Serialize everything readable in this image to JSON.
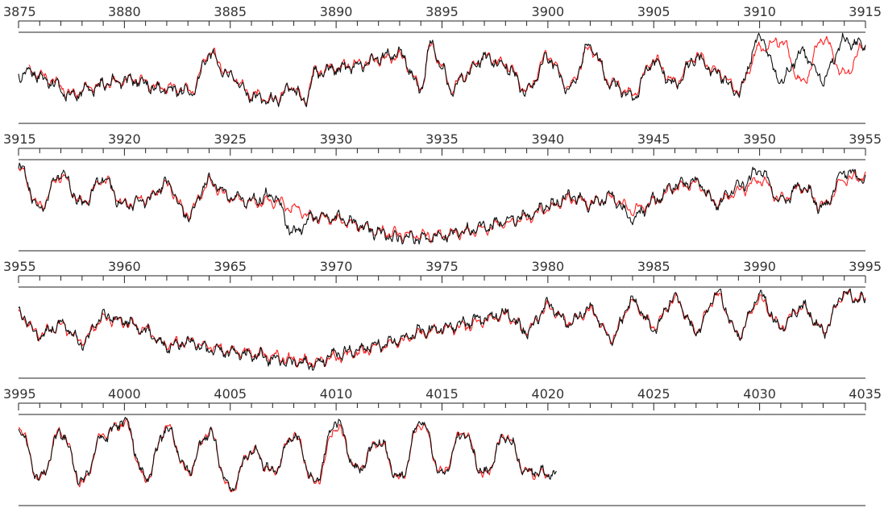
{
  "chart_data": {
    "type": "line",
    "colors": {
      "model": "#ff2020",
      "observed": "#111111",
      "axis": "#222222"
    },
    "panels": [
      {
        "xlim": [
          3875,
          3915
        ],
        "tick_labels": [
          "3875",
          "3880",
          "3885",
          "3890",
          "3895",
          "3900",
          "3905",
          "3910",
          "3915"
        ],
        "series": [
          {
            "role": "model",
            "color": "#ff2020",
            "x": [
              3875.5,
              3876.5,
              3877.5,
              3878.5,
              3879.5,
              3880.5,
              3881.5,
              3882.5,
              3883.2,
              3884,
              3885,
              3886,
              3887,
              3888,
              3888.5,
              3889,
              3890,
              3891,
              3892,
              3893,
              3894,
              3894.5,
              3895,
              3895.5,
              3896,
              3897,
              3898,
              3899,
              3900,
              3901,
              3902,
              3903,
              3904,
              3905,
              3906,
              3907,
              3908,
              3909,
              3910,
              3911,
              3912,
              3913,
              3914,
              3915
            ],
            "y": [
              0.55,
              0.45,
              0.25,
              0.35,
              0.4,
              0.45,
              0.35,
              0.32,
              0.3,
              0.8,
              0.5,
              0.25,
              0.18,
              0.35,
              0.15,
              0.55,
              0.6,
              0.65,
              0.7,
              0.75,
              0.35,
              0.9,
              0.6,
              0.3,
              0.5,
              0.75,
              0.65,
              0.3,
              0.75,
              0.35,
              0.85,
              0.4,
              0.25,
              0.7,
              0.4,
              0.75,
              0.55,
              0.3,
              0.85,
              0.95,
              0.4,
              0.98,
              0.5,
              0.9
            ]
          },
          {
            "role": "observed",
            "color": "#111111",
            "x": [
              3875,
              3875.5,
              3876.5,
              3877.5,
              3878.5,
              3879.5,
              3880.5,
              3881.5,
              3882.5,
              3883.2,
              3884,
              3885,
              3886,
              3887,
              3888,
              3888.5,
              3889,
              3890,
              3891,
              3892,
              3893,
              3894,
              3894.5,
              3895,
              3895.5,
              3896,
              3897,
              3898,
              3899,
              3900,
              3901,
              3902,
              3903,
              3904,
              3905,
              3906,
              3907,
              3908,
              3909,
              3910,
              3911,
              3912,
              3913,
              3914,
              3915
            ],
            "y": [
              0.5,
              0.55,
              0.42,
              0.22,
              0.33,
              0.42,
              0.43,
              0.33,
              0.3,
              0.28,
              0.78,
              0.48,
              0.22,
              0.16,
              0.33,
              0.13,
              0.52,
              0.58,
              0.62,
              0.72,
              0.78,
              0.32,
              0.92,
              0.58,
              0.28,
              0.48,
              0.73,
              0.62,
              0.28,
              0.72,
              0.32,
              0.88,
              0.38,
              0.22,
              0.68,
              0.38,
              0.72,
              0.52,
              0.28,
              1.0,
              0.42,
              0.8,
              0.45,
              0.95,
              0.88
            ]
          }
        ]
      },
      {
        "xlim": [
          3915,
          3955
        ],
        "tick_labels": [
          "3915",
          "3920",
          "3925",
          "3930",
          "3935",
          "3940",
          "3945",
          "3950",
          "3955"
        ],
        "series": [
          {
            "role": "model",
            "color": "#ff2020",
            "x": [
              3915,
              3916,
              3917,
              3918,
              3919,
              3920,
              3921,
              3922,
              3923,
              3924,
              3925,
              3926,
              3927,
              3928,
              3929,
              3930,
              3931,
              3932,
              3933,
              3934,
              3935,
              3936,
              3937,
              3938,
              3939,
              3940,
              3941,
              3942,
              3943,
              3944,
              3945,
              3946,
              3947,
              3948,
              3949,
              3950,
              3951,
              3952,
              3953,
              3954,
              3955
            ],
            "y": [
              0.95,
              0.45,
              0.85,
              0.5,
              0.8,
              0.48,
              0.55,
              0.72,
              0.35,
              0.75,
              0.55,
              0.5,
              0.52,
              0.42,
              0.3,
              0.28,
              0.2,
              0.12,
              0.08,
              0.06,
              0.07,
              0.1,
              0.15,
              0.22,
              0.3,
              0.42,
              0.55,
              0.5,
              0.55,
              0.4,
              0.5,
              0.7,
              0.75,
              0.5,
              0.65,
              0.8,
              0.55,
              0.7,
              0.45,
              0.8,
              0.85
            ]
          },
          {
            "role": "observed",
            "color": "#111111",
            "x": [
              3915,
              3916,
              3917,
              3918,
              3919,
              3920,
              3921,
              3922,
              3923,
              3924,
              3925,
              3926,
              3927,
              3928,
              3929,
              3930,
              3931,
              3932,
              3933,
              3934,
              3935,
              3936,
              3937,
              3938,
              3939,
              3940,
              3941,
              3942,
              3943,
              3944,
              3945,
              3946,
              3947,
              3948,
              3949,
              3950,
              3951,
              3952,
              3953,
              3954,
              3955
            ],
            "y": [
              0.98,
              0.42,
              0.88,
              0.48,
              0.82,
              0.45,
              0.53,
              0.75,
              0.32,
              0.78,
              0.58,
              0.52,
              0.6,
              0.1,
              0.32,
              0.3,
              0.22,
              0.1,
              0.02,
              0.03,
              0.05,
              0.12,
              0.17,
              0.25,
              0.32,
              0.45,
              0.58,
              0.48,
              0.58,
              0.28,
              0.52,
              0.72,
              0.78,
              0.48,
              0.7,
              0.92,
              0.52,
              0.72,
              0.42,
              0.9,
              0.82
            ]
          }
        ]
      },
      {
        "xlim": [
          3955,
          3995
        ],
        "tick_labels": [
          "3955",
          "3960",
          "3965",
          "3970",
          "3975",
          "3980",
          "3985",
          "3990",
          "3995"
        ],
        "series": [
          {
            "role": "model",
            "color": "#ff2020",
            "x": [
              3955,
              3956,
              3957,
              3958,
              3959,
              3960,
              3961,
              3962,
              3963,
              3964,
              3965,
              3966,
              3967,
              3968,
              3969,
              3970,
              3971,
              3972,
              3973,
              3974,
              3975,
              3976,
              3977,
              3978,
              3979,
              3980,
              3981,
              3982,
              3983,
              3984,
              3985,
              3986,
              3987,
              3988,
              3989,
              3990,
              3991,
              3992,
              3993,
              3994,
              3995
            ],
            "y": [
              0.7,
              0.45,
              0.55,
              0.35,
              0.65,
              0.6,
              0.5,
              0.3,
              0.35,
              0.28,
              0.22,
              0.2,
              0.15,
              0.1,
              0.08,
              0.14,
              0.2,
              0.28,
              0.35,
              0.45,
              0.5,
              0.55,
              0.62,
              0.7,
              0.5,
              0.8,
              0.6,
              0.75,
              0.4,
              0.85,
              0.55,
              0.9,
              0.5,
              0.95,
              0.45,
              0.9,
              0.55,
              0.8,
              0.5,
              0.95,
              0.9
            ]
          },
          {
            "role": "observed",
            "color": "#111111",
            "x": [
              3955,
              3956,
              3957,
              3958,
              3959,
              3960,
              3961,
              3962,
              3963,
              3964,
              3965,
              3966,
              3967,
              3968,
              3969,
              3970,
              3971,
              3972,
              3973,
              3974,
              3975,
              3976,
              3977,
              3978,
              3979,
              3980,
              3981,
              3982,
              3983,
              3984,
              3985,
              3986,
              3987,
              3988,
              3989,
              3990,
              3991,
              3992,
              3993,
              3994,
              3995
            ],
            "y": [
              0.72,
              0.42,
              0.57,
              0.32,
              0.68,
              0.62,
              0.48,
              0.27,
              0.33,
              0.25,
              0.2,
              0.18,
              0.12,
              0.07,
              0.05,
              0.18,
              0.22,
              0.3,
              0.37,
              0.48,
              0.52,
              0.58,
              0.65,
              0.72,
              0.48,
              0.82,
              0.58,
              0.78,
              0.38,
              0.88,
              0.52,
              0.93,
              0.48,
              0.98,
              0.42,
              0.95,
              0.52,
              0.82,
              0.48,
              0.98,
              0.88
            ]
          }
        ]
      },
      {
        "xlim": [
          3995,
          4035
        ],
        "tick_labels": [
          "3995",
          "4000",
          "4005",
          "4010",
          "4015",
          "4020",
          "4025",
          "4030",
          "4035"
        ],
        "series": [
          {
            "role": "model",
            "color": "#ff2020",
            "x": [
              3995,
              3996,
              3997,
              3998,
              3999,
              4000,
              4001,
              4002,
              4003,
              4004,
              4005,
              4006,
              4007,
              4008,
              4009,
              4010,
              4011,
              4012,
              4013,
              4014,
              4015,
              4016,
              4017,
              4018,
              4019,
              4020
            ],
            "y": [
              0.9,
              0.2,
              0.85,
              0.15,
              0.8,
              0.95,
              0.2,
              0.9,
              0.3,
              0.85,
              0.05,
              0.6,
              0.3,
              0.8,
              0.15,
              0.9,
              0.35,
              0.7,
              0.2,
              0.95,
              0.3,
              0.85,
              0.25,
              0.8,
              0.3,
              0.25
            ]
          },
          {
            "role": "observed",
            "color": "#111111",
            "x": [
              3995,
              3996,
              3997,
              3998,
              3999,
              4000,
              4001,
              4002,
              4003,
              4004,
              4005,
              4006,
              4007,
              4008,
              4009,
              4010,
              4011,
              4012,
              4013,
              4014,
              4015,
              4016,
              4017,
              4018,
              4019,
              4020.4
            ],
            "y": [
              0.88,
              0.22,
              0.82,
              0.18,
              0.78,
              0.98,
              0.22,
              0.88,
              0.32,
              0.82,
              0.08,
              0.58,
              0.32,
              0.78,
              0.18,
              0.98,
              0.32,
              0.72,
              0.22,
              0.98,
              0.28,
              0.82,
              0.28,
              0.78,
              0.32,
              0.28
            ]
          }
        ]
      }
    ]
  }
}
